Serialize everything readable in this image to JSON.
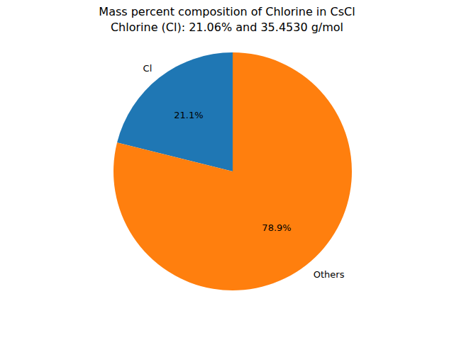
{
  "chart_data": {
    "type": "pie",
    "title": "Mass percent composition of Chlorine in CsCl",
    "subtitle": "Chlorine (Cl): 21.06% and 35.4530 g/mol",
    "categories": [
      "Cl",
      "Others"
    ],
    "values": [
      21.1,
      78.9
    ],
    "value_labels": [
      "21.1%",
      "78.9%"
    ],
    "colors": [
      "#1f77b4",
      "#ff7f0e"
    ],
    "data_labels": true
  }
}
